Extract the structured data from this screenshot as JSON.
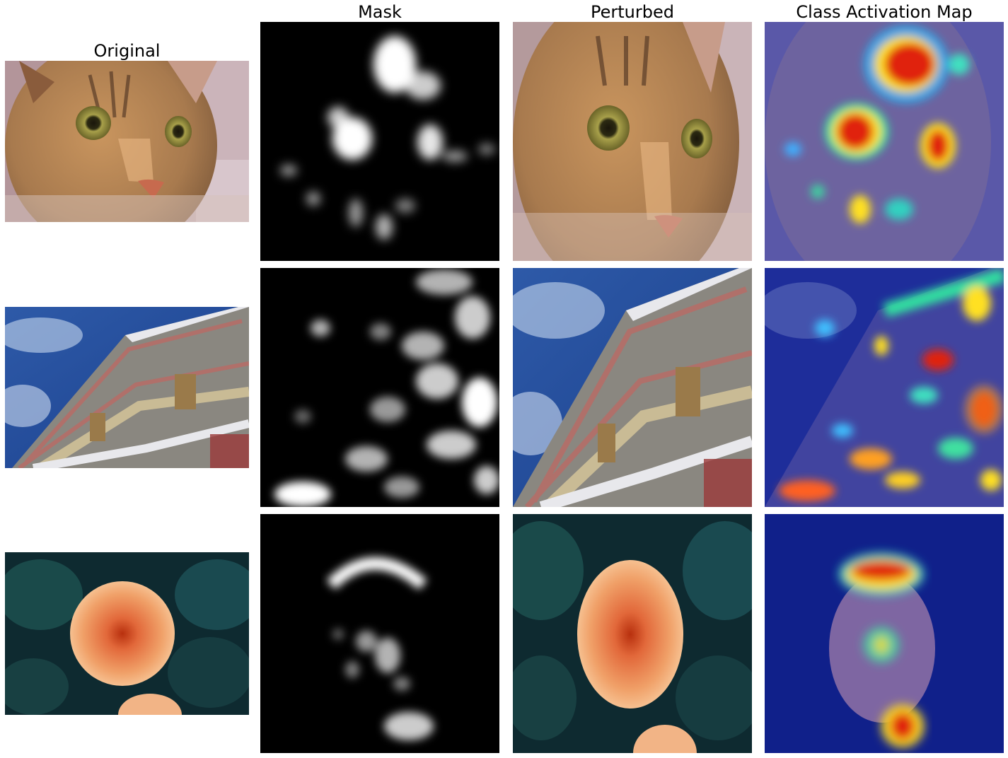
{
  "titles": {
    "original": "Original",
    "mask": "Mask",
    "perturbed": "Perturbed",
    "cam": "Class Activation Map"
  },
  "rows": [
    {
      "subject": "cat"
    },
    {
      "subject": "building"
    },
    {
      "subject": "dahlia"
    }
  ],
  "colors": {
    "background": "#ffffff",
    "mask_black": "#000000",
    "cam_low": "#1d2a9c",
    "cam_high": "#e02010"
  }
}
